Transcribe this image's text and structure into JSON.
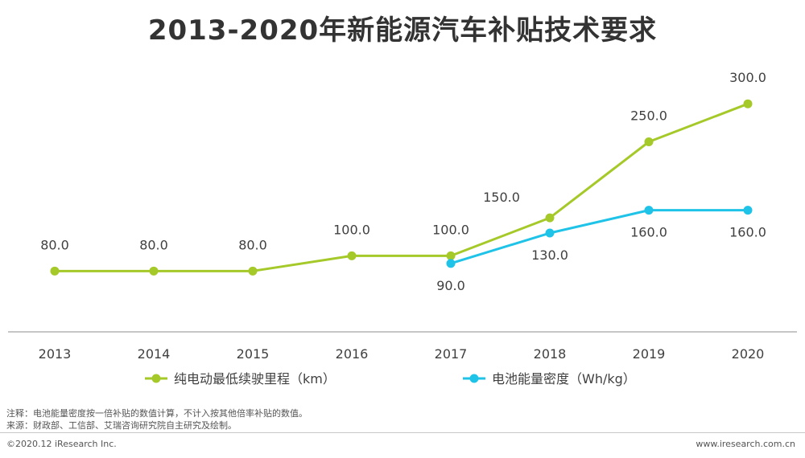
{
  "chart_data": {
    "type": "line",
    "title": "2013-2020年新能源汽车补贴技术要求",
    "categories": [
      "2013",
      "2014",
      "2015",
      "2016",
      "2017",
      "2018",
      "2019",
      "2020"
    ],
    "series": [
      {
        "name": "纯电动最低续驶里程（km）",
        "color": "#a5c929",
        "values": [
          80.0,
          80.0,
          80.0,
          100.0,
          100.0,
          150.0,
          250.0,
          300.0
        ],
        "labels": [
          "80.0",
          "80.0",
          "80.0",
          "100.0",
          "100.0",
          "150.0",
          "250.0",
          "300.0"
        ]
      },
      {
        "name": "电池能量密度（Wh/kg）",
        "color": "#1fc3e8",
        "values": [
          null,
          null,
          null,
          null,
          90.0,
          130.0,
          160.0,
          160.0
        ],
        "labels": [
          null,
          null,
          null,
          null,
          "90.0",
          "130.0",
          "160.0",
          "160.0"
        ]
      }
    ],
    "ylim": [
      0,
      320
    ],
    "grid": false,
    "legend": "bottom"
  },
  "footer": {
    "note": "注释：电池能量密度按一倍补贴的数值计算，不计入按其他倍率补贴的数值。",
    "source": "来源：财政部、工信部、艾瑞咨询研究院自主研究及绘制。",
    "copyright": "©2020.12 iResearch Inc.",
    "website": "www.iresearch.com.cn"
  }
}
